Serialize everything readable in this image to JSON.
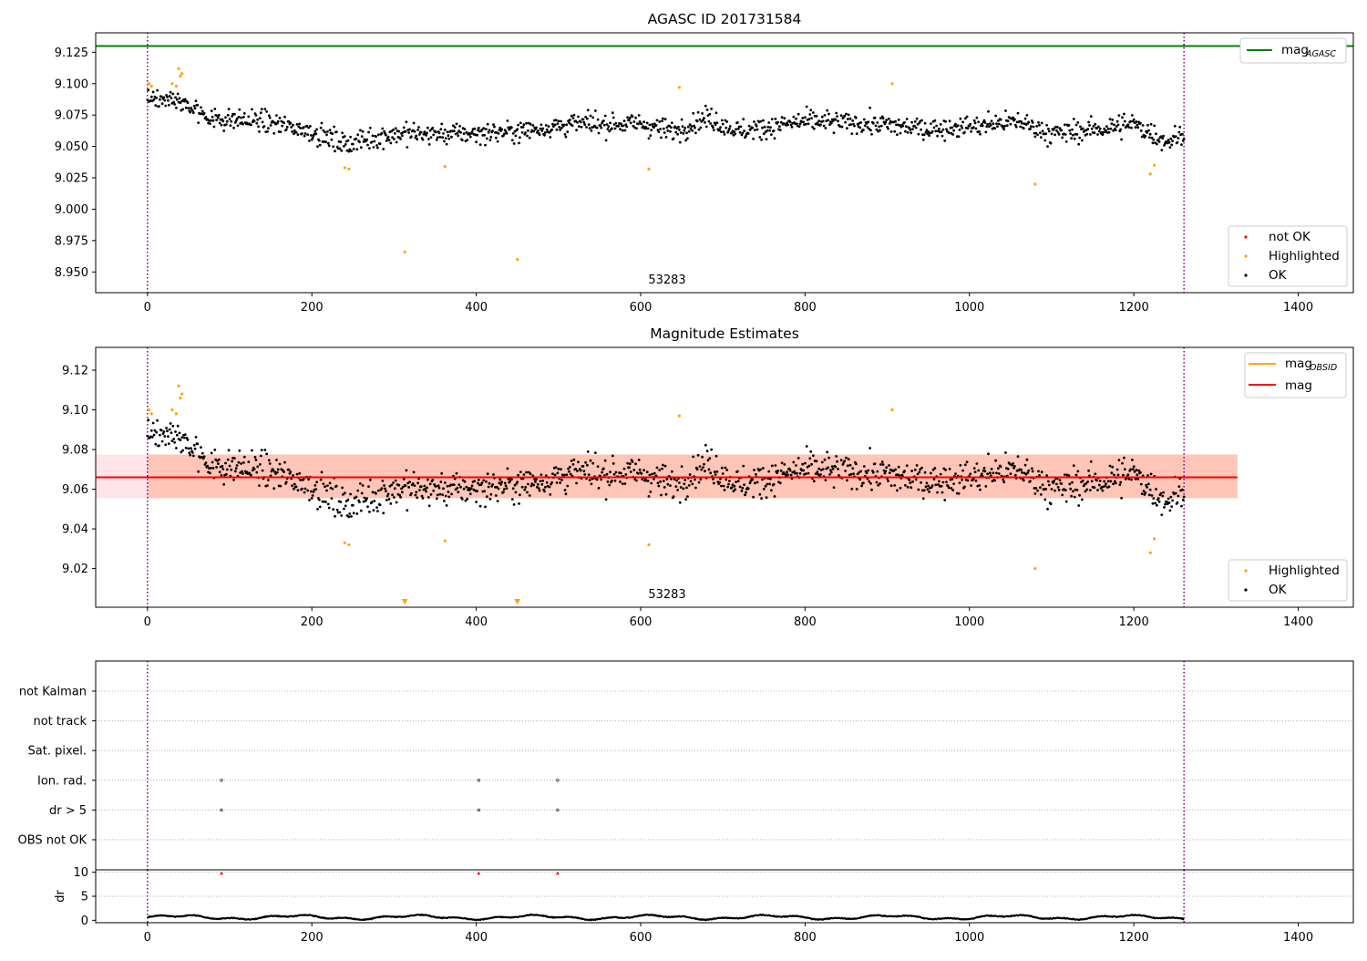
{
  "colors": {
    "ok": "#000000",
    "highlighted": "#ffa500",
    "not_ok": "#ff0000",
    "mag_agasc": "#008000",
    "mag_obsid": "#ffa500",
    "mag": "#ff0000",
    "band_outer": "#ffc0cb",
    "band_inner": "#ffa07a",
    "obs_boundary": "#800080"
  },
  "chart_data": [
    {
      "type": "scatter",
      "title": "AGASC ID 201731584",
      "xlabel": "",
      "ylabel": "",
      "xlim": [
        -63,
        1467
      ],
      "ylim": [
        8.9335,
        9.1405
      ],
      "x_ticks": [
        "0",
        "200",
        "400",
        "600",
        "800",
        "1000",
        "1200",
        "1400"
      ],
      "y_ticks": [
        "8.950",
        "8.975",
        "9.000",
        "9.025",
        "9.050",
        "9.075",
        "9.100",
        "9.125"
      ],
      "obsid_label": "53283",
      "obs_boundaries": [
        0,
        1261
      ],
      "mag_agasc": 9.13,
      "legend_line": {
        "text": "mag",
        "sub": "AGASC",
        "position": "top-right"
      },
      "legend_points": {
        "items": [
          "not OK",
          "Highlighted",
          "OK"
        ],
        "position": "bottom-right"
      },
      "series": [
        {
          "name": "OK",
          "n_points": 1262,
          "x_range": [
            0,
            1261
          ],
          "mean": 9.066,
          "scatter": 0.011
        },
        {
          "name": "Highlighted",
          "points": [
            [
              2,
              9.1
            ],
            [
              5,
              9.098
            ],
            [
              30,
              9.1
            ],
            [
              35,
              9.098
            ],
            [
              38,
              9.112
            ],
            [
              40,
              9.106
            ],
            [
              42,
              9.108
            ],
            [
              240,
              9.033
            ],
            [
              245,
              9.032
            ],
            [
              313,
              8.966
            ],
            [
              362,
              9.034
            ],
            [
              450,
              8.96
            ],
            [
              610,
              9.032
            ],
            [
              647,
              9.097
            ],
            [
              906,
              9.1
            ],
            [
              1080,
              9.02
            ],
            [
              1220,
              9.028
            ],
            [
              1225,
              9.035
            ]
          ]
        }
      ]
    },
    {
      "type": "scatter",
      "title": "Magnitude Estimates",
      "xlim": [
        -63,
        1467
      ],
      "ylim": [
        9.0005,
        9.1315
      ],
      "x_ticks": [
        "0",
        "200",
        "400",
        "600",
        "800",
        "1000",
        "1200",
        "1400"
      ],
      "y_ticks": [
        "9.02",
        "9.04",
        "9.06",
        "9.08",
        "9.10",
        "9.12"
      ],
      "obsid_label": "53283",
      "mag": 9.066,
      "mag_band": [
        9.0555,
        9.0775
      ],
      "band_x_range": [
        -63,
        1326
      ],
      "inner_band_x_range": [
        0,
        1326
      ],
      "legend_lines": [
        {
          "text": "mag",
          "sub": "OBSID"
        },
        {
          "text": "mag",
          "sub": ""
        }
      ],
      "legend_points": {
        "items": [
          "Highlighted",
          "OK"
        ],
        "position": "bottom-right"
      },
      "out_of_range_markers": [
        313,
        450
      ]
    },
    {
      "type": "scatter",
      "title": "",
      "xlim": [
        -63,
        1467
      ],
      "categories": [
        "not Kalman",
        "not track",
        "Sat. pixel.",
        "Ion. rad.",
        "dr > 5",
        "OBS not OK"
      ],
      "flag_points": {
        "Ion. rad.": [
          90,
          403,
          499
        ],
        "dr > 5": [
          90,
          403,
          499
        ]
      }
    },
    {
      "type": "line",
      "ylabel": "dr",
      "xlim": [
        -63,
        1467
      ],
      "ylim": [
        -0.5,
        10.5
      ],
      "y_ticks": [
        "0",
        "5",
        "10"
      ],
      "x_ticks": [
        "0",
        "200",
        "400",
        "600",
        "800",
        "1000",
        "1200",
        "1400"
      ],
      "clipped_markers": [
        90,
        403,
        499
      ]
    }
  ]
}
